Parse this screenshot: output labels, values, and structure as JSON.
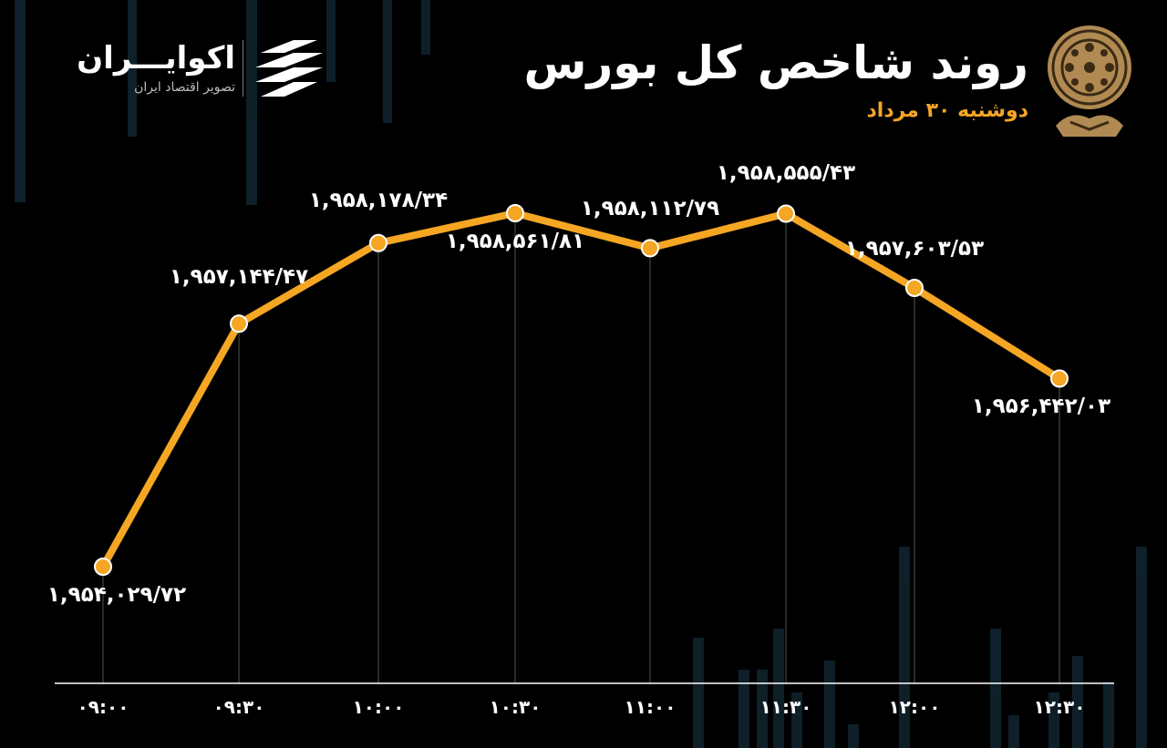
{
  "header": {
    "brand_name": "اکوایـــران",
    "brand_tagline": "تصویر اقتصاد ایران",
    "title": "روند شاخص کل بورس",
    "date": "دوشنبه ۳۰ مرداد"
  },
  "colors": {
    "background": "#000000",
    "line": "#f5a623",
    "marker": "#f5a623",
    "text": "#ffffff",
    "axis": "#ffffff",
    "guide": "#555555"
  },
  "chart_data": {
    "type": "line",
    "title": "روند شاخص کل بورس",
    "subtitle": "دوشنبه ۳۰ مرداد",
    "xlabel": "",
    "ylabel": "",
    "grid": false,
    "legend": "none",
    "categories": [
      "09:00",
      "09:30",
      "10:00",
      "10:30",
      "11:00",
      "11:30",
      "12:00",
      "12:30"
    ],
    "x_tick_labels": [
      "۰۹:۰۰",
      "۰۹:۳۰",
      "۱۰:۰۰",
      "۱۰:۳۰",
      "۱۱:۰۰",
      "۱۱:۳۰",
      "۱۲:۰۰",
      "۱۲:۳۰"
    ],
    "series": [
      {
        "values": [
          1954029.72,
          1957144.47,
          1958178.34,
          1958561.81,
          1958112.79,
          1958555.43,
          1957603.53,
          1956442.03
        ],
        "value_labels": [
          "۱,۹۵۴,۰۲۹/۷۲",
          "۱,۹۵۷,۱۴۴/۴۷",
          "۱,۹۵۸,۱۷۸/۳۴",
          "۱,۹۵۸,۵۶۱/۸۱",
          "۱,۹۵۸,۱۱۲/۷۹",
          "۱,۹۵۸,۵۵۵/۴۳",
          "۱,۹۵۷,۶۰۳/۵۳",
          "۱,۹۵۶,۴۴۲/۰۳"
        ]
      }
    ]
  }
}
